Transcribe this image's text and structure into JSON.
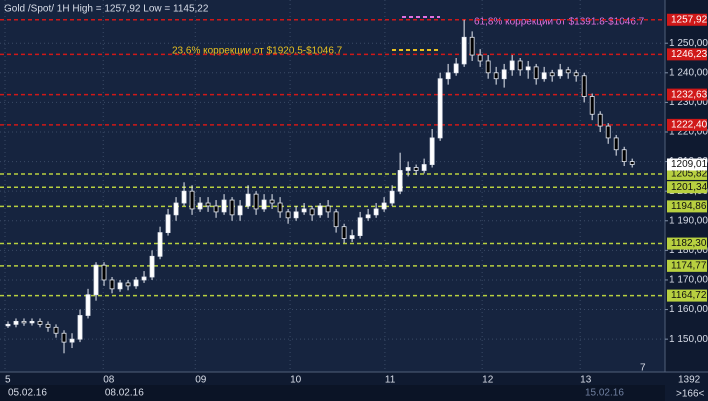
{
  "chart_data": {
    "type": "candlestick",
    "title": "Gold /Spot/ 1H High = 1257,92 Low = 1145,22",
    "annotations": [
      {
        "text": "61,8% коррекции от $1391.8-$1046.7",
        "color": "#e070e0"
      },
      {
        "text": "23,6% коррекции от $1920.5-$1046.7",
        "color": "#e8c020"
      }
    ],
    "ylim": [
      1138.9,
      1264.6
    ],
    "yticks": [
      {
        "value": 1150,
        "label": "1 150,00"
      },
      {
        "value": 1160,
        "label": "1 160,00"
      },
      {
        "value": 1170,
        "label": "1 170,00"
      },
      {
        "value": 1180,
        "label": "1 180,00"
      },
      {
        "value": 1190,
        "label": "1 190,00"
      },
      {
        "value": 1200,
        "label": "1 200,00"
      },
      {
        "value": 1210,
        "label": "1 210,00"
      },
      {
        "value": 1220,
        "label": "1 220,00"
      },
      {
        "value": 1230,
        "label": "1 230,00"
      },
      {
        "value": 1240,
        "label": "1 240,00"
      },
      {
        "value": 1250,
        "label": "1 250,00"
      }
    ],
    "xlim": [
      -1,
      82.1
    ],
    "xticks": [
      {
        "value": -0.375,
        "label": "5"
      },
      {
        "value": 11.9,
        "label": "08"
      },
      {
        "value": 23.4,
        "label": "09"
      },
      {
        "value": 35.25,
        "label": "10"
      },
      {
        "value": 47.1,
        "label": "11"
      },
      {
        "value": 59.25,
        "label": "12"
      },
      {
        "value": 71.5,
        "label": "13"
      }
    ],
    "date_labels": [
      {
        "value": 0,
        "label": "05.02.16"
      },
      {
        "value": 12.1,
        "label": "08.02.16"
      },
      {
        "value": 72.1,
        "label": "15.02.16"
      }
    ],
    "grid": true,
    "levels": [
      {
        "value": 1257.92,
        "label": "1257,92",
        "color": "#d01818"
      },
      {
        "value": 1246.23,
        "label": "1246,23",
        "color": "#d01818"
      },
      {
        "value": 1232.63,
        "label": "1232,63",
        "color": "#d01818"
      },
      {
        "value": 1222.4,
        "label": "1222,40",
        "color": "#d01818"
      },
      {
        "value": 1205.82,
        "label": "1205,82",
        "color": "#b8d040"
      },
      {
        "value": 1201.34,
        "label": "1201,34",
        "color": "#b8d040"
      },
      {
        "value": 1194.86,
        "label": "1194,86",
        "color": "#b8d040"
      },
      {
        "value": 1182.3,
        "label": "1182,30",
        "color": "#b8d040"
      },
      {
        "value": 1174.77,
        "label": "1174,77",
        "color": "#b8d040"
      },
      {
        "value": 1164.72,
        "label": "1164,72",
        "color": "#b8d040"
      }
    ],
    "last_price": {
      "value": 1209.01,
      "label": "1209,01"
    },
    "open": [
      1154.5,
      1155,
      1156,
      1155.5,
      1156,
      1155,
      1154,
      1152,
      1149,
      1150,
      1158,
      1165,
      1175,
      1170,
      1167,
      1169,
      1168,
      1170,
      1171,
      1178,
      1186,
      1192,
      1196,
      1200,
      1194,
      1196,
      1195,
      1193,
      1197,
      1192,
      1195,
      1199,
      1194,
      1197,
      1196,
      1193,
      1191,
      1193,
      1194,
      1192,
      1195,
      1193,
      1188,
      1184,
      1185,
      1191,
      1192,
      1194,
      1196,
      1200,
      1207,
      1208,
      1207,
      1209,
      1218,
      1238,
      1240,
      1243,
      1252,
      1246,
      1244,
      1240,
      1238,
      1241,
      1244,
      1241,
      1242,
      1238,
      1240,
      1239,
      1241,
      1240,
      1239,
      1232,
      1226,
      1222,
      1218,
      1214,
      1210
    ],
    "high": [
      1156,
      1157,
      1157,
      1157,
      1157,
      1156,
      1155,
      1153,
      1152,
      1160,
      1167,
      1176,
      1176,
      1171,
      1170,
      1170,
      1171,
      1173,
      1180,
      1188,
      1194,
      1198,
      1203,
      1202,
      1198,
      1198,
      1197,
      1199,
      1198,
      1197,
      1202,
      1200,
      1199,
      1199,
      1198,
      1194,
      1195,
      1196,
      1195,
      1196,
      1197,
      1194,
      1189,
      1187,
      1193,
      1194,
      1196,
      1198,
      1202,
      1213,
      1210,
      1209,
      1211,
      1221,
      1240,
      1243,
      1245,
      1257.92,
      1254,
      1248,
      1246,
      1242,
      1243,
      1246,
      1245,
      1244,
      1243,
      1242,
      1241,
      1243,
      1242,
      1241,
      1240,
      1233,
      1227,
      1223,
      1219,
      1215,
      1211
    ],
    "low": [
      1153.8,
      1154,
      1154.5,
      1154.6,
      1154,
      1152.5,
      1150.5,
      1145.22,
      1147,
      1149,
      1157,
      1163,
      1168,
      1165.5,
      1166,
      1166.5,
      1167,
      1169,
      1170,
      1177,
      1185,
      1190,
      1195,
      1192,
      1193,
      1193,
      1191,
      1192,
      1190,
      1190,
      1194,
      1192,
      1193,
      1194,
      1191,
      1189,
      1190,
      1192,
      1190,
      1191,
      1191,
      1186,
      1182.5,
      1182.8,
      1184,
      1190,
      1191,
      1193,
      1195,
      1199,
      1205,
      1205.5,
      1206,
      1208,
      1217,
      1236,
      1239,
      1242,
      1244,
      1242,
      1238,
      1236,
      1235,
      1239,
      1239,
      1238,
      1236,
      1237,
      1237,
      1238,
      1238,
      1237,
      1230,
      1224,
      1220,
      1216,
      1212,
      1208.5,
      1208
    ],
    "close": [
      1155,
      1156,
      1155.5,
      1156,
      1155,
      1154,
      1152,
      1149,
      1150,
      1158,
      1165,
      1175,
      1170,
      1167,
      1169,
      1168,
      1170,
      1171,
      1178,
      1186,
      1192,
      1196,
      1200,
      1194,
      1196,
      1195,
      1193,
      1197,
      1192,
      1195,
      1199,
      1194,
      1197,
      1196,
      1193,
      1191,
      1193,
      1194,
      1192,
      1195,
      1193,
      1188,
      1184,
      1185,
      1191,
      1192,
      1194,
      1196,
      1200,
      1207,
      1208,
      1207,
      1209,
      1218,
      1238,
      1240,
      1243,
      1252,
      1246,
      1244,
      1240,
      1238,
      1241,
      1244,
      1241,
      1242,
      1238,
      1240,
      1239,
      1241,
      1240,
      1239,
      1232,
      1226,
      1222,
      1218,
      1214,
      1210,
      1209.01
    ]
  },
  "footer": {
    "page_mark": "7",
    "bars_count": "1392",
    "shift": ">166<"
  }
}
